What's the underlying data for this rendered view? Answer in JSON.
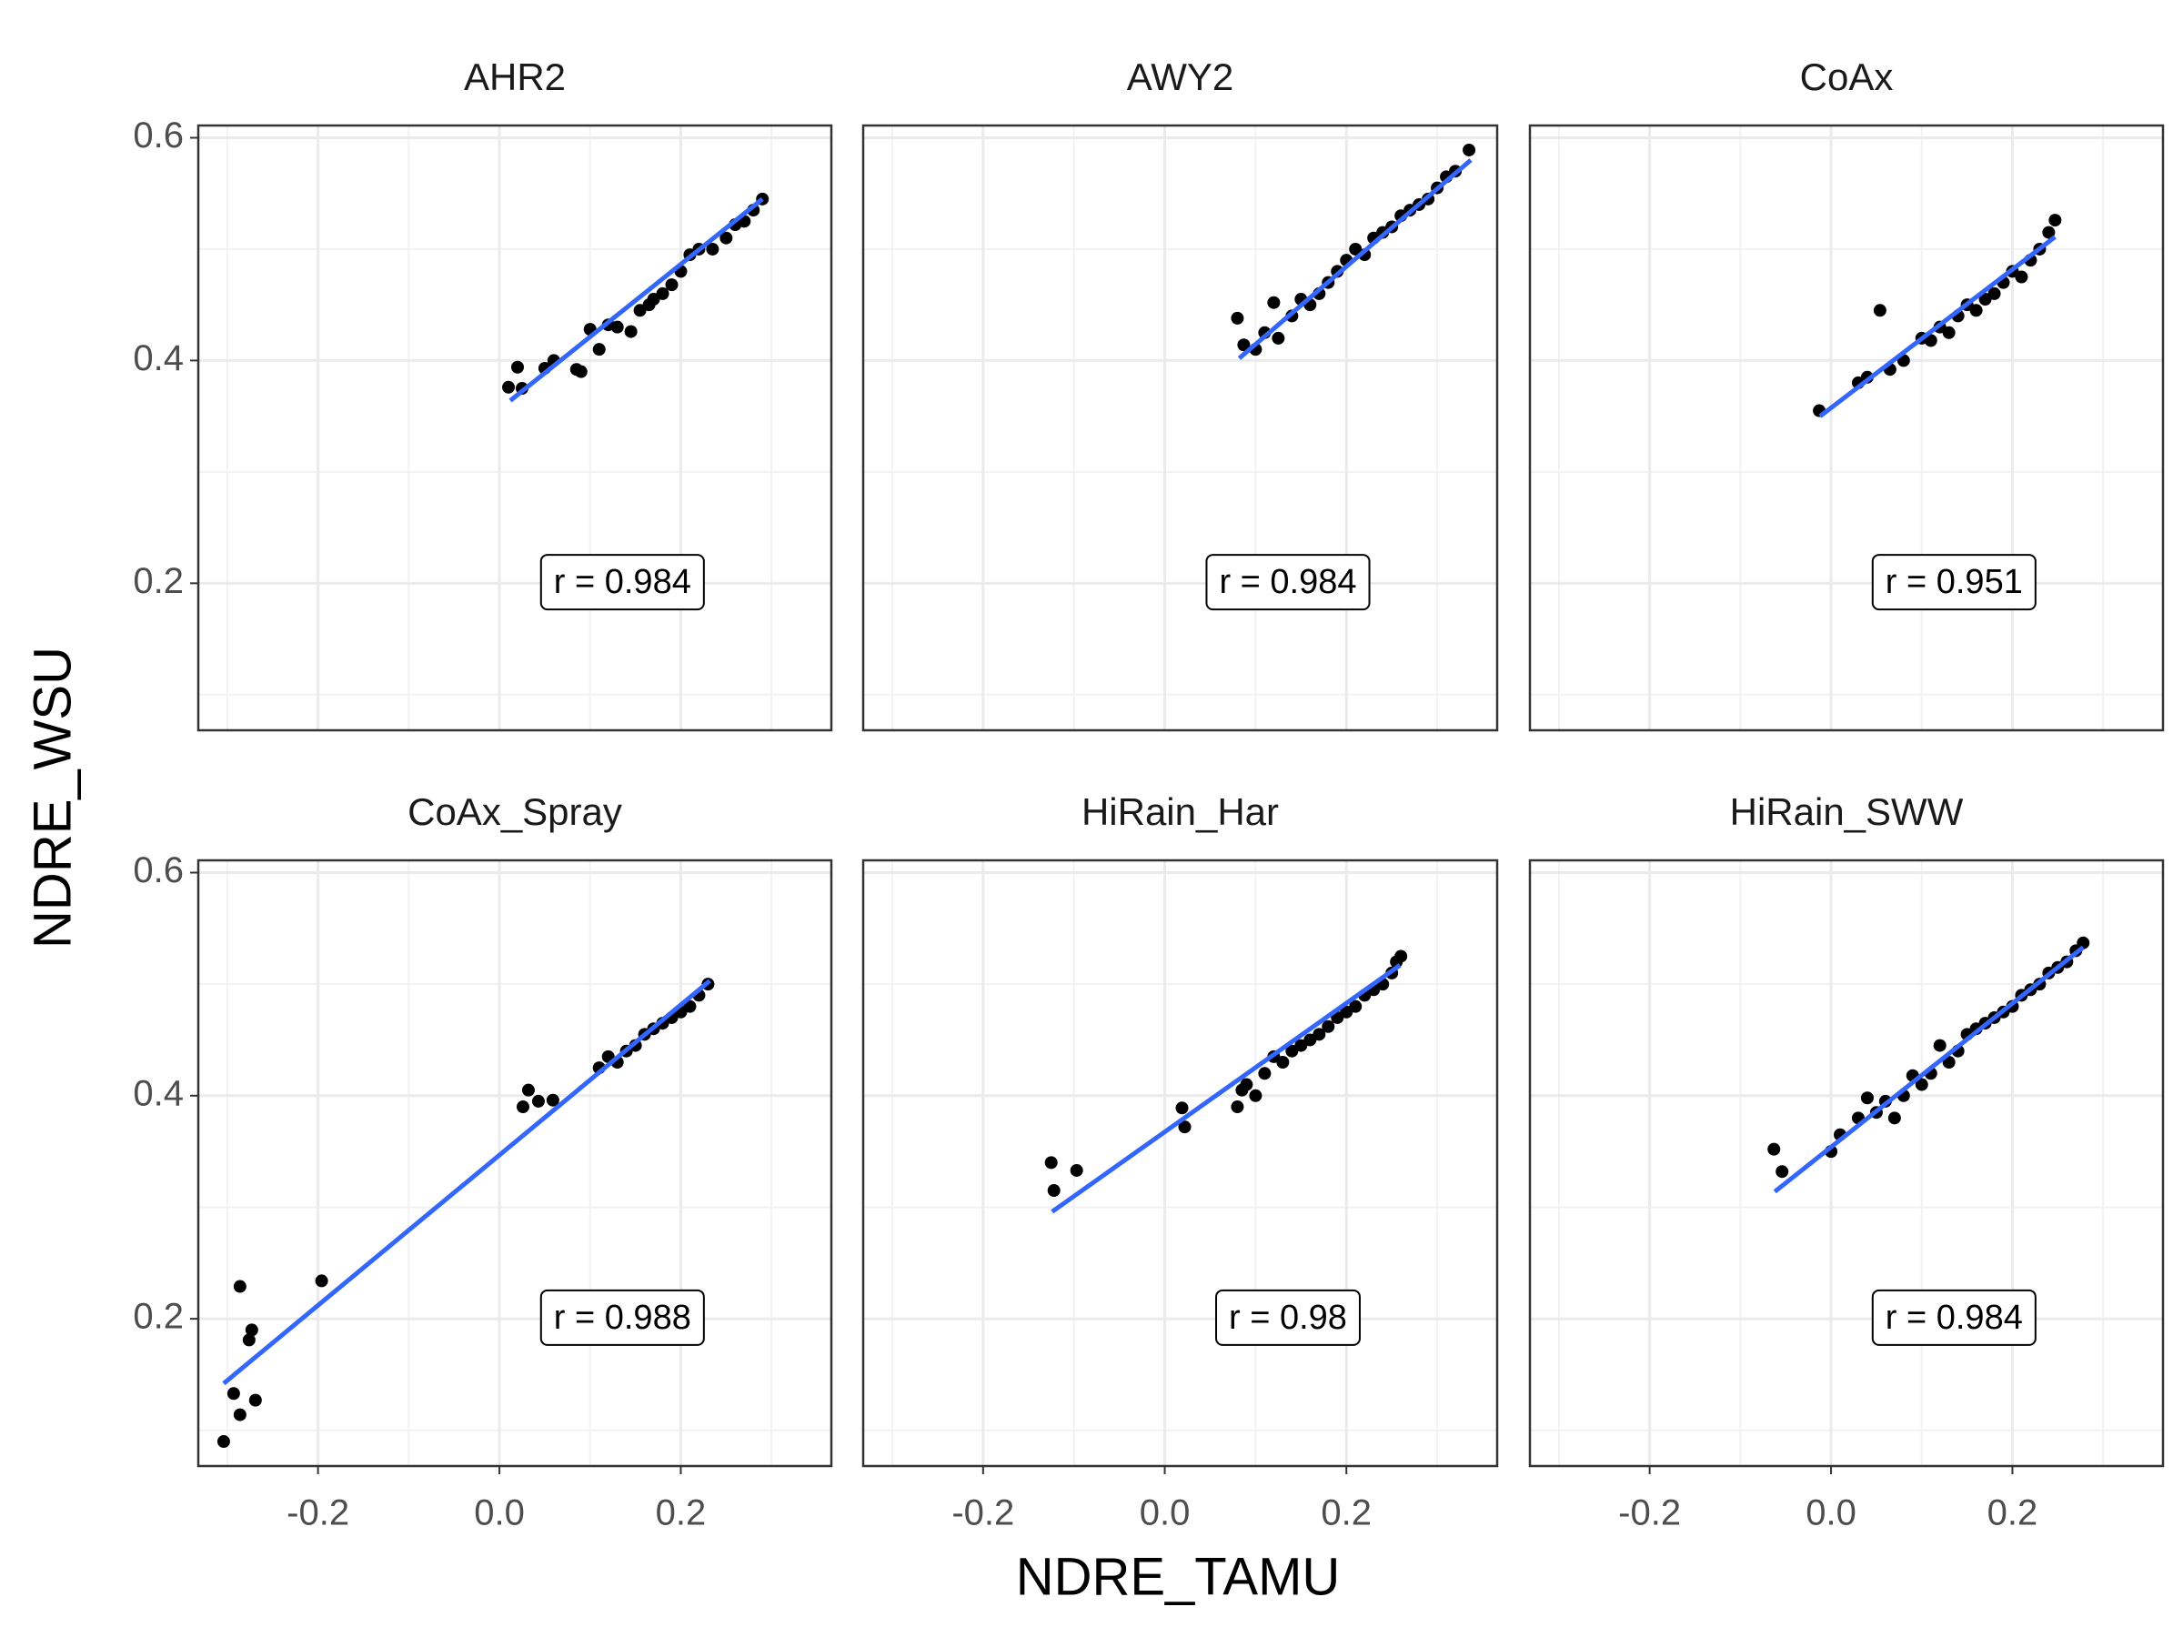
{
  "chart_data": {
    "type": "scatter",
    "xlabel": "NDRE_TAMU",
    "ylabel": "NDRE_WSU",
    "xlim": [
      -0.332,
      0.366
    ],
    "ylim": [
      0.068,
      0.611
    ],
    "xticks": [
      -0.2,
      {
        "value": 0,
        "label": "0.0"
      },
      0.2
    ],
    "yticks": [
      0.2,
      0.4,
      0.6
    ],
    "grid": true,
    "point_color": "#000000",
    "fit_color": "#3366ff",
    "panels": [
      {
        "title": "AHR2",
        "annotation": "r = 0.984",
        "x": [
          0.01,
          0.02,
          0.025,
          0.05,
          0.06,
          0.085,
          0.09,
          0.1,
          0.11,
          0.12,
          0.13,
          0.145,
          0.155,
          0.165,
          0.17,
          0.18,
          0.19,
          0.2,
          0.21,
          0.22,
          0.235,
          0.25,
          0.26,
          0.27,
          0.28,
          0.29
        ],
        "y": [
          0.376,
          0.394,
          0.375,
          0.393,
          0.4,
          0.392,
          0.39,
          0.428,
          0.41,
          0.432,
          0.43,
          0.426,
          0.445,
          0.45,
          0.455,
          0.46,
          0.468,
          0.48,
          0.495,
          0.5,
          0.5,
          0.51,
          0.522,
          0.525,
          0.535,
          0.545
        ],
        "fit": {
          "x": [
            0.012,
            0.29
          ],
          "y": [
            0.364,
            0.545
          ]
        }
      },
      {
        "title": "AWY2",
        "annotation": "r = 0.984",
        "x": [
          0.08,
          0.087,
          0.1,
          0.11,
          0.12,
          0.125,
          0.14,
          0.15,
          0.16,
          0.17,
          0.18,
          0.19,
          0.2,
          0.21,
          0.22,
          0.23,
          0.24,
          0.25,
          0.26,
          0.27,
          0.28,
          0.29,
          0.3,
          0.31,
          0.32,
          0.335
        ],
        "y": [
          0.438,
          0.414,
          0.41,
          0.425,
          0.452,
          0.42,
          0.44,
          0.455,
          0.45,
          0.46,
          0.47,
          0.48,
          0.49,
          0.5,
          0.495,
          0.51,
          0.515,
          0.52,
          0.53,
          0.535,
          0.54,
          0.545,
          0.555,
          0.565,
          0.57,
          0.589
        ],
        "fit": {
          "x": [
            0.082,
            0.337
          ],
          "y": [
            0.402,
            0.58
          ]
        }
      },
      {
        "title": "CoAx",
        "annotation": "r = 0.951",
        "x": [
          -0.013,
          0.03,
          0.04,
          0.054,
          0.065,
          0.08,
          0.1,
          0.11,
          0.12,
          0.13,
          0.14,
          0.15,
          0.16,
          0.17,
          0.18,
          0.19,
          0.2,
          0.21,
          0.22,
          0.23,
          0.24,
          0.247
        ],
        "y": [
          0.355,
          0.38,
          0.385,
          0.445,
          0.392,
          0.4,
          0.42,
          0.418,
          0.43,
          0.425,
          0.44,
          0.45,
          0.445,
          0.455,
          0.46,
          0.47,
          0.48,
          0.475,
          0.49,
          0.5,
          0.515,
          0.526
        ],
        "fit": {
          "x": [
            -0.012,
            0.247
          ],
          "y": [
            0.35,
            0.511
          ]
        }
      },
      {
        "title": "CoAx_Spray",
        "annotation": "r = 0.988",
        "x": [
          -0.304,
          -0.293,
          -0.286,
          -0.273,
          -0.276,
          -0.269,
          -0.286,
          -0.196,
          0.026,
          0.032,
          0.043,
          0.059,
          0.11,
          0.12,
          0.13,
          0.14,
          0.15,
          0.16,
          0.17,
          0.18,
          0.19,
          0.2,
          0.21,
          0.22,
          0.23
        ],
        "y": [
          0.09,
          0.133,
          0.229,
          0.19,
          0.181,
          0.127,
          0.114,
          0.234,
          0.39,
          0.405,
          0.395,
          0.396,
          0.425,
          0.435,
          0.43,
          0.44,
          0.445,
          0.455,
          0.46,
          0.465,
          0.47,
          0.475,
          0.48,
          0.49,
          0.5
        ],
        "fit": {
          "x": [
            -0.304,
            0.232
          ],
          "y": [
            0.142,
            0.503
          ]
        }
      },
      {
        "title": "HiRain_Har",
        "annotation": "r = 0.98",
        "x": [
          -0.125,
          -0.122,
          -0.097,
          0.019,
          0.022,
          0.08,
          0.085,
          0.09,
          0.1,
          0.11,
          0.12,
          0.13,
          0.14,
          0.15,
          0.16,
          0.17,
          0.18,
          0.19,
          0.2,
          0.21,
          0.22,
          0.23,
          0.24,
          0.25,
          0.255,
          0.26
        ],
        "y": [
          0.34,
          0.315,
          0.333,
          0.389,
          0.372,
          0.39,
          0.405,
          0.41,
          0.4,
          0.42,
          0.435,
          0.43,
          0.44,
          0.445,
          0.45,
          0.455,
          0.462,
          0.47,
          0.475,
          0.48,
          0.49,
          0.495,
          0.5,
          0.51,
          0.52,
          0.525
        ],
        "fit": {
          "x": [
            -0.124,
            0.259
          ],
          "y": [
            0.296,
            0.517
          ]
        }
      },
      {
        "title": "HiRain_SWW",
        "annotation": "r = 0.984",
        "x": [
          -0.063,
          -0.054,
          0.0,
          0.01,
          0.03,
          0.04,
          0.05,
          0.06,
          0.07,
          0.08,
          0.09,
          0.1,
          0.11,
          0.12,
          0.13,
          0.14,
          0.15,
          0.16,
          0.17,
          0.18,
          0.19,
          0.2,
          0.21,
          0.22,
          0.23,
          0.24,
          0.25,
          0.26,
          0.27,
          0.278
        ],
        "y": [
          0.352,
          0.332,
          0.35,
          0.365,
          0.38,
          0.398,
          0.385,
          0.395,
          0.38,
          0.4,
          0.418,
          0.41,
          0.42,
          0.445,
          0.43,
          0.44,
          0.455,
          0.46,
          0.465,
          0.47,
          0.475,
          0.48,
          0.49,
          0.495,
          0.5,
          0.51,
          0.515,
          0.52,
          0.53,
          0.537
        ],
        "fit": {
          "x": [
            -0.062,
            0.278
          ],
          "y": [
            0.314,
            0.533
          ]
        }
      }
    ]
  }
}
